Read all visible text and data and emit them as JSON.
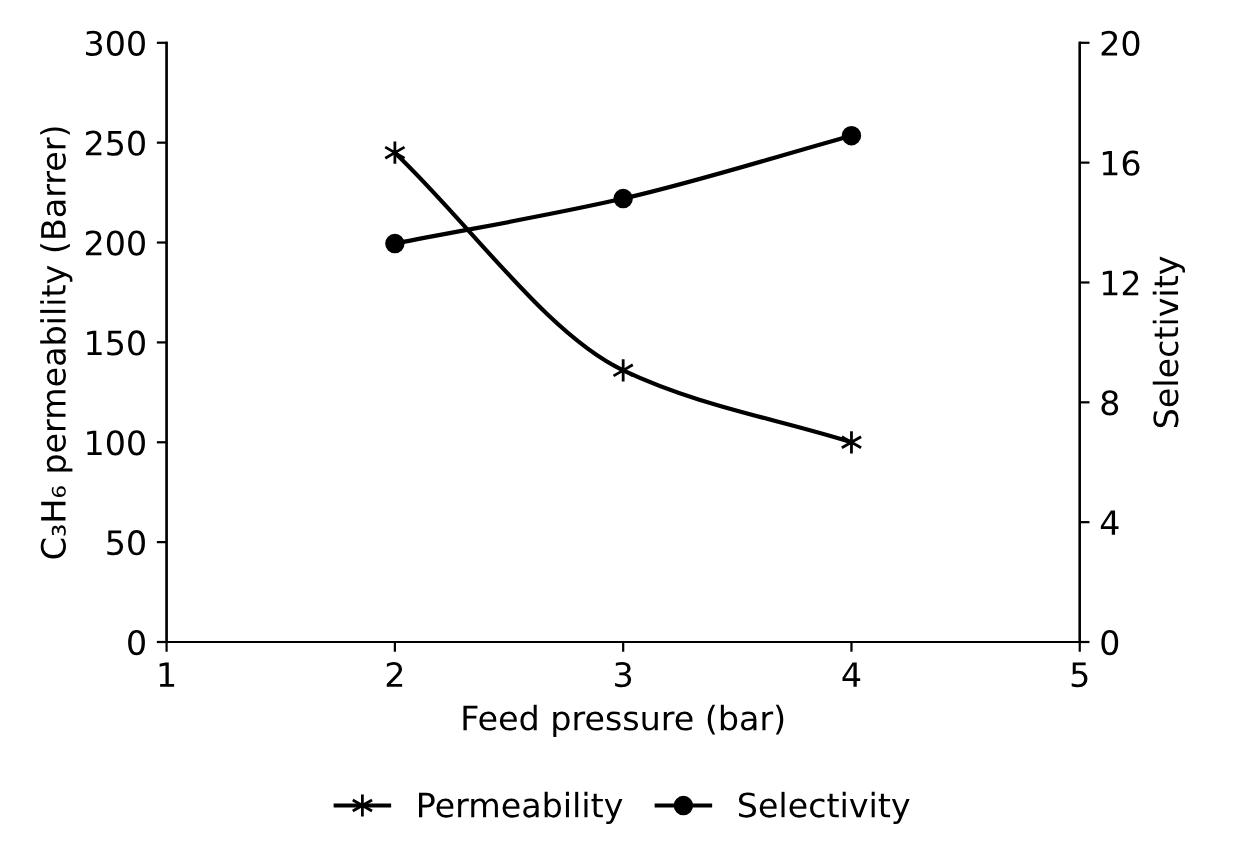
{
  "chart_data": {
    "type": "line",
    "xlabel": "Feed pressure (bar)",
    "ylabel": "C₃H₆ permeability (Barrer)",
    "y2label": "Selectivity",
    "x": [
      2,
      3,
      4
    ],
    "series": [
      {
        "name": "Permeability",
        "color": "#000000",
        "values": [
          245,
          136,
          100
        ],
        "marker": "cross"
      },
      {
        "name": "Selectivity",
        "color": "#000000",
        "values": [
          13.3,
          14.8,
          16.9
        ],
        "marker": "circle",
        "axis": "y2"
      }
    ],
    "xlim": [
      1,
      5
    ],
    "xticks": [
      1,
      2,
      3,
      4,
      5
    ],
    "ylim": [
      0,
      300
    ],
    "yticks": [
      0,
      50,
      100,
      150,
      200,
      250,
      300
    ],
    "y2lim": [
      0,
      20
    ],
    "y2ticks": [
      0,
      4,
      8,
      12,
      16,
      20
    ],
    "grid": false,
    "legend": "bottom",
    "line_style": "solid"
  }
}
